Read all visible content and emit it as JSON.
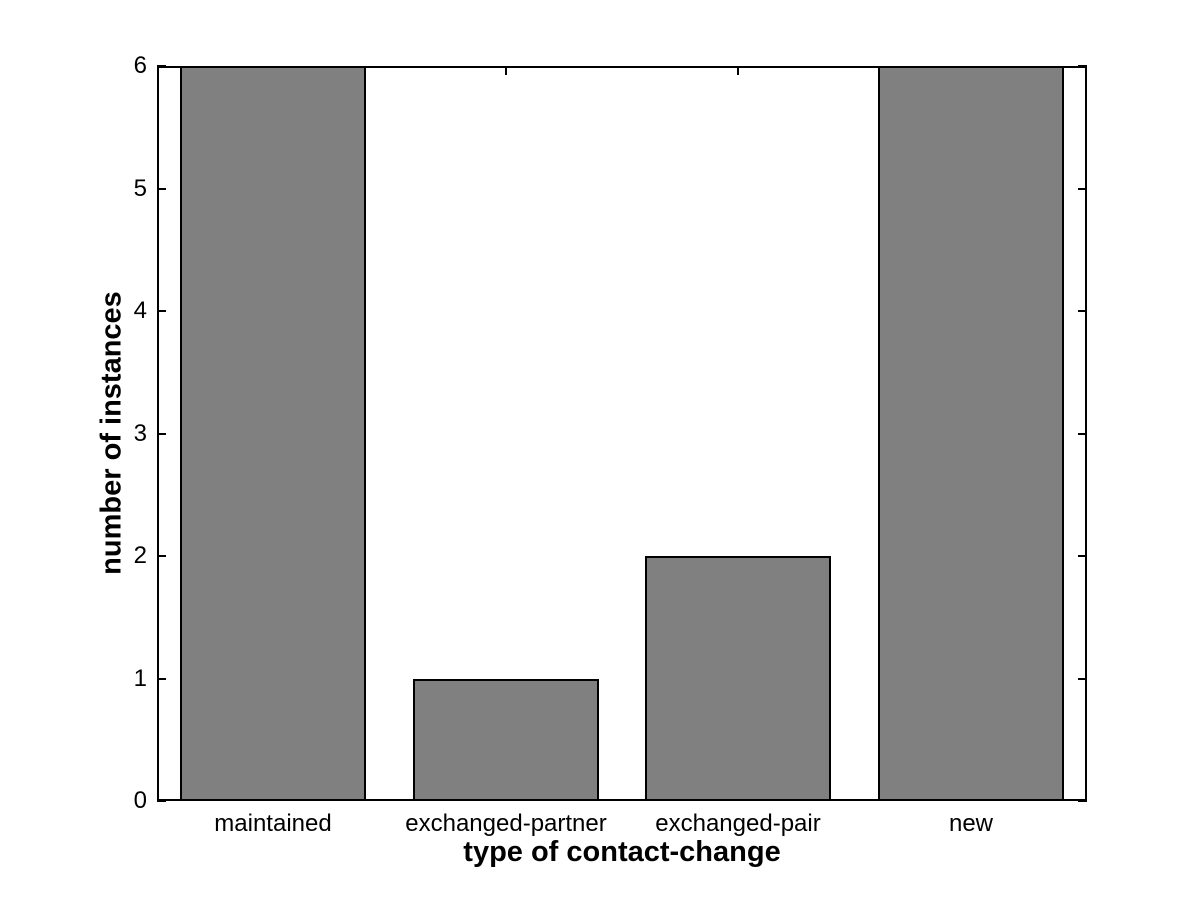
{
  "figure": {
    "background_color": "#ffffff"
  },
  "chart_data": {
    "type": "bar",
    "title": "",
    "categories": [
      "maintained",
      "exchanged-partner",
      "exchanged-pair",
      "new"
    ],
    "values": [
      6,
      1,
      2,
      6
    ],
    "xlabel": "type of contact-change",
    "ylabel": "number of instances",
    "ylim": [
      0,
      6
    ],
    "yticks": [
      0,
      1,
      2,
      3,
      4,
      5,
      6
    ],
    "ytick_labels": [
      "0",
      "1",
      "2",
      "3",
      "4",
      "5",
      "6"
    ],
    "grid": false,
    "legend_position": "none",
    "bar_width_fraction": 0.8,
    "bar_color": "#808080",
    "bar_edge_color": "#000000",
    "axis_color": "#000000",
    "tick_direction": "in"
  }
}
